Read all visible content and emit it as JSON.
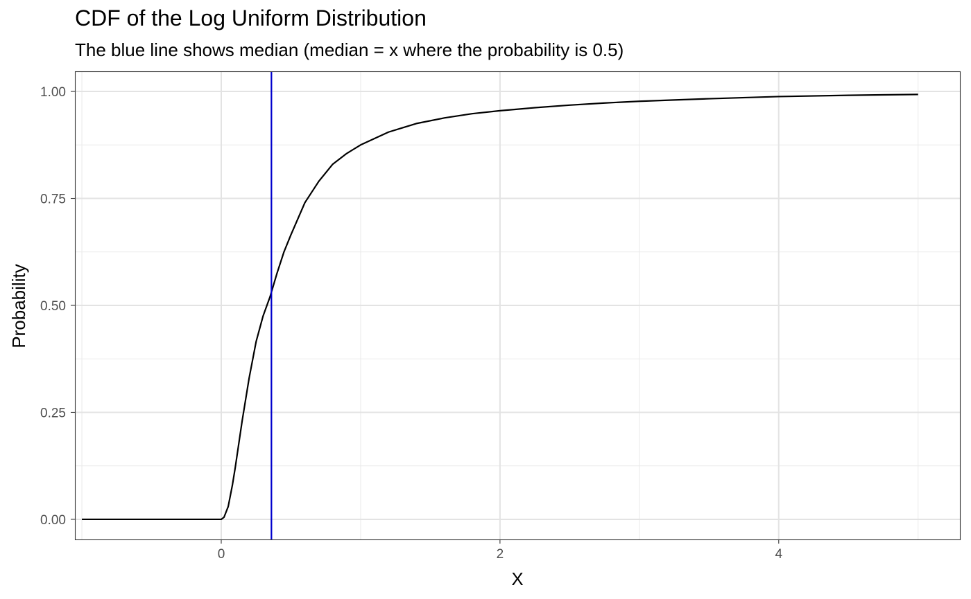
{
  "chart_data": {
    "type": "line",
    "title": "CDF of the Log Uniform Distribution",
    "subtitle": "The blue line shows median (median = x where the probability is 0.5)",
    "xlabel": "X",
    "ylabel": "Probability",
    "xlim": [
      -1.05,
      5.3
    ],
    "ylim": [
      -0.047,
      1.047
    ],
    "x_ticks": [
      0,
      2,
      4
    ],
    "x_tick_labels": [
      "0",
      "2",
      "4"
    ],
    "x_minor_ticks": [
      -1,
      1,
      3,
      5
    ],
    "y_ticks": [
      0,
      0.25,
      0.5,
      0.75,
      1.0
    ],
    "y_tick_labels": [
      "0.00",
      "0.25",
      "0.50",
      "0.75",
      "1.00"
    ],
    "y_minor_ticks": [
      0.125,
      0.375,
      0.625,
      0.875
    ],
    "grid": true,
    "series": [
      {
        "color": "#000000",
        "x": [
          -1,
          -0.5,
          0,
          0.02,
          0.05,
          0.08,
          0.1,
          0.15,
          0.2,
          0.25,
          0.3,
          0.35,
          0.4,
          0.45,
          0.5,
          0.6,
          0.7,
          0.8,
          0.9,
          1.0,
          1.1,
          1.2,
          1.3,
          1.4,
          1.6,
          1.8,
          2.0,
          2.25,
          2.5,
          2.75,
          3.0,
          3.25,
          3.5,
          4.0,
          4.5,
          5.0
        ],
        "y": [
          0,
          0,
          0,
          0.005,
          0.03,
          0.08,
          0.12,
          0.23,
          0.33,
          0.415,
          0.475,
          0.52,
          0.575,
          0.625,
          0.665,
          0.74,
          0.79,
          0.83,
          0.855,
          0.875,
          0.89,
          0.905,
          0.915,
          0.925,
          0.938,
          0.948,
          0.955,
          0.962,
          0.968,
          0.973,
          0.977,
          0.98,
          0.983,
          0.988,
          0.991,
          0.993
        ]
      }
    ],
    "vline": {
      "x": 0.36,
      "color": "#0000cc"
    }
  }
}
